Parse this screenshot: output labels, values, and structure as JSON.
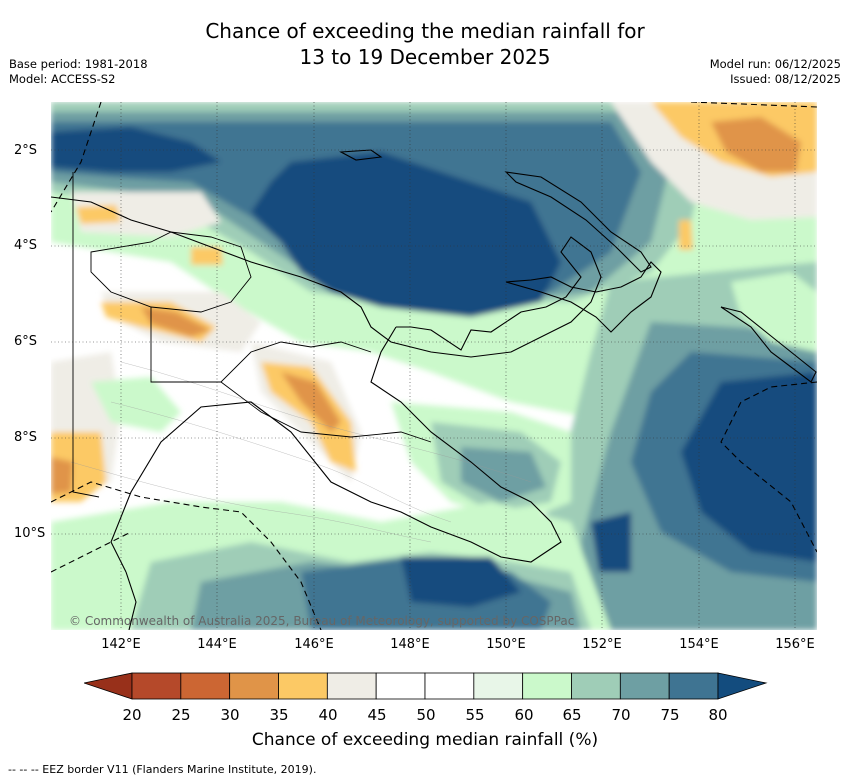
{
  "title": {
    "line1": "Chance of exceeding the median rainfall for",
    "line2": "13 to 19 December 2025"
  },
  "meta": {
    "base_period": "Base period: 1981-2018",
    "model": "Model: ACCESS-S2",
    "model_run": "Model run: 06/12/2025",
    "issued": "Issued: 08/12/2025"
  },
  "map": {
    "lon_labels": [
      "142°E",
      "144°E",
      "146°E",
      "148°E",
      "150°E",
      "152°E",
      "154°E",
      "156°E"
    ],
    "lat_labels": [
      "2°S",
      "4°S",
      "6°S",
      "8°S",
      "10°S"
    ],
    "copyright": "© Commonwealth of Australia 2025, Bureau of Meteorology, supported by COSPPac"
  },
  "colorbar": {
    "ticks": [
      "20",
      "25",
      "30",
      "35",
      "40",
      "45",
      "50",
      "55",
      "60",
      "65",
      "70",
      "75",
      "80"
    ],
    "title": "Chance of exceeding median rainfall (%)",
    "colors": {
      "below20": "#98301a",
      "c20_25": "#b5492a",
      "c25_30": "#cc6633",
      "c30_35": "#e09448",
      "c35_40": "#fcc965",
      "c40_45": "#efede6",
      "c45_50": "#ffffff",
      "c50_55": "#ffffff",
      "c55_60": "#e8f6e8",
      "c60_65": "#cbf9cb",
      "c65_70": "#9fcdb7",
      "c70_75": "#6e9fa3",
      "c75_80": "#3f7492",
      "above80": "#134c7e"
    }
  },
  "legend_note": "--  --  -- EEZ border V11 (Flanders Marine Institute, 2019)."
}
